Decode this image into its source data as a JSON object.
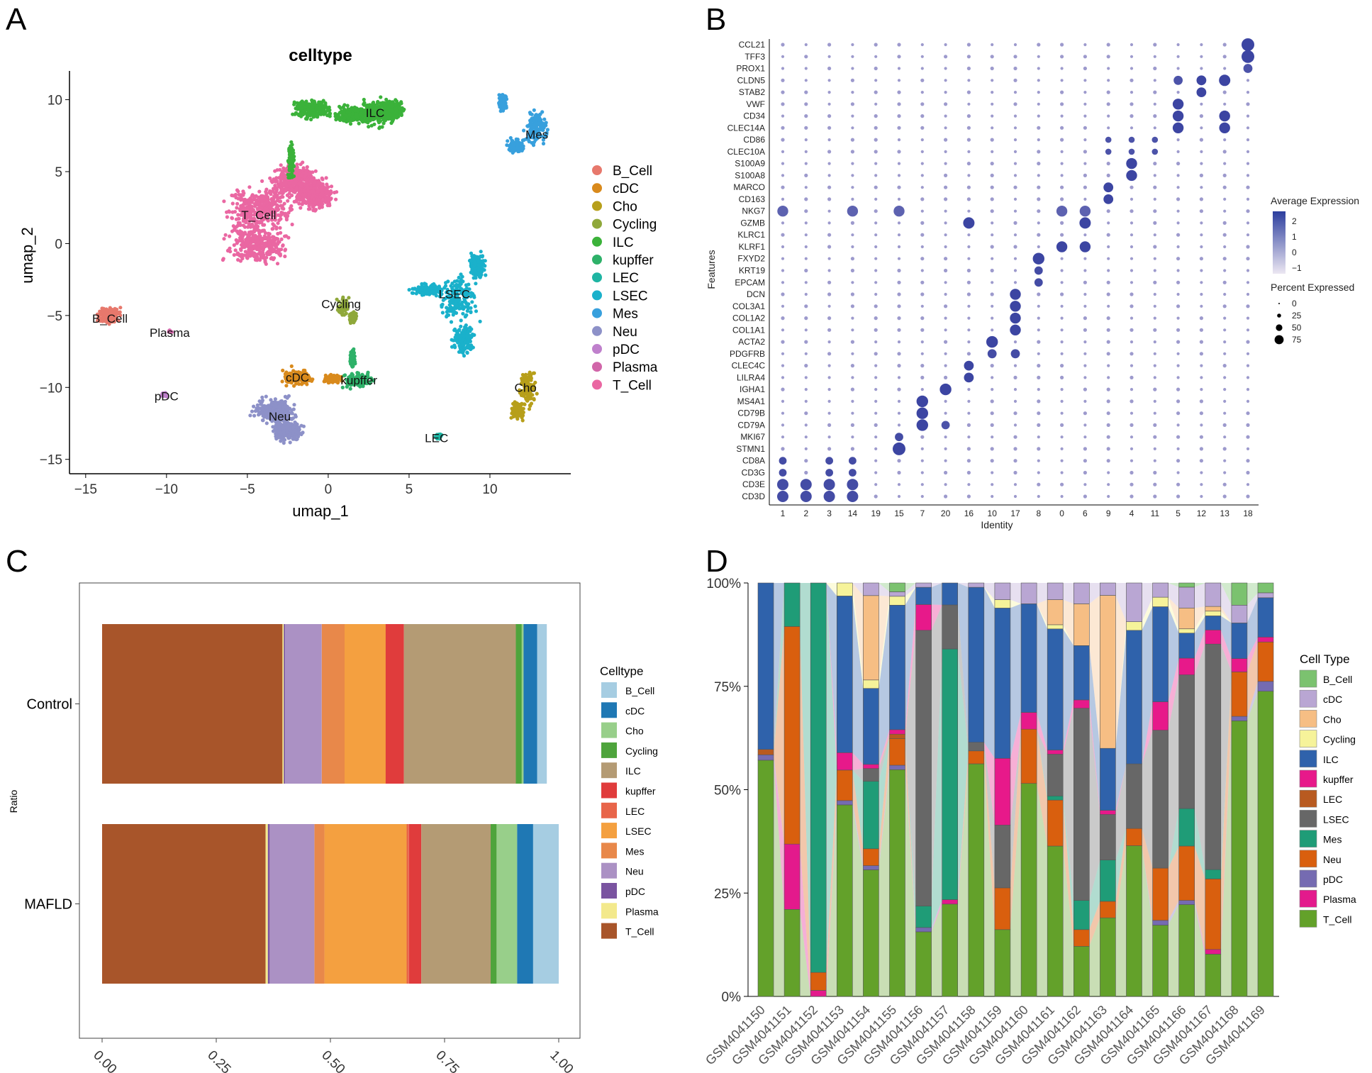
{
  "panels": {
    "a": "A",
    "b": "B",
    "c": "C",
    "d": "D"
  },
  "colors": {
    "B_Cell": "#e7786c",
    "cDC": "#d98a1c",
    "Cho": "#b79f1a",
    "Cycling": "#8fa83a",
    "ILC": "#3bb23a",
    "kupffer": "#2eb169",
    "LEC": "#1fb5a3",
    "LSEC": "#1ab1cb",
    "Mes": "#38a0dd",
    "Neu": "#8d91c8",
    "pDC": "#bf80cc",
    "Plasma": "#d166a9",
    "T_Cell": "#ea67a2"
  },
  "chart_data": [
    {
      "type": "scatter",
      "panel": "A",
      "title": "celltype",
      "xlabel": "umap_1",
      "ylabel": "umap_2",
      "xlim": [
        -16,
        15
      ],
      "ylim": [
        -16,
        12
      ],
      "xticks": [
        -15,
        -10,
        -5,
        0,
        5,
        10
      ],
      "yticks": [
        -15,
        -10,
        -5,
        0,
        5,
        10
      ],
      "legend": [
        "B_Cell",
        "cDC",
        "Cho",
        "Cycling",
        "ILC",
        "kupffer",
        "LEC",
        "LSEC",
        "Mes",
        "Neu",
        "pDC",
        "Plasma",
        "T_Cell"
      ],
      "cluster_labels": [
        {
          "name": "B_Cell",
          "x": -13.5,
          "y": -5.2
        },
        {
          "name": "Plasma",
          "x": -9.8,
          "y": -6.2
        },
        {
          "name": "pDC",
          "x": -10.0,
          "y": -10.6
        },
        {
          "name": "T_Cell",
          "x": -4.3,
          "y": 2.0
        },
        {
          "name": "ILC",
          "x": 2.9,
          "y": 9.1
        },
        {
          "name": "Mes",
          "x": 12.9,
          "y": 7.6
        },
        {
          "name": "Cycling",
          "x": 0.8,
          "y": -4.2
        },
        {
          "name": "LSEC",
          "x": 7.8,
          "y": -3.5
        },
        {
          "name": "cDC",
          "x": -1.9,
          "y": -9.3
        },
        {
          "name": "kupffer",
          "x": 1.9,
          "y": -9.5
        },
        {
          "name": "Neu",
          "x": -3.0,
          "y": -12.0
        },
        {
          "name": "Cho",
          "x": 12.2,
          "y": -10.0
        },
        {
          "name": "LEC",
          "x": 6.7,
          "y": -13.5
        }
      ]
    },
    {
      "type": "dot",
      "panel": "B",
      "xlabel": "Identity",
      "ylabel": "Features",
      "identities": [
        "1",
        "2",
        "3",
        "14",
        "19",
        "15",
        "7",
        "20",
        "16",
        "10",
        "17",
        "8",
        "0",
        "6",
        "9",
        "4",
        "11",
        "5",
        "12",
        "13",
        "18"
      ],
      "features": [
        "CCL21",
        "TFF3",
        "PROX1",
        "CLDN5",
        "STAB2",
        "VWF",
        "CD34",
        "CLEC14A",
        "CD86",
        "CLEC10A",
        "S100A9",
        "S100A8",
        "MARCO",
        "CD163",
        "NKG7",
        "GZMB",
        "KLRC1",
        "KLRF1",
        "FXYD2",
        "KRT19",
        "EPCAM",
        "DCN",
        "COL3A1",
        "COL1A2",
        "COL1A1",
        "ACTA2",
        "PDGFRB",
        "CLEC4C",
        "LILRA4",
        "IGHA1",
        "MS4A1",
        "CD79B",
        "CD79A",
        "MKI67",
        "STMN1",
        "CD8A",
        "CD3G",
        "CD3E",
        "CD3D"
      ],
      "avg_legend_title": "Average Expression",
      "avg_legend_ticks": [
        "2",
        "1",
        "0",
        "−1"
      ],
      "pct_legend_title": "Percent Expressed",
      "pct_legend_ticks": [
        "0",
        "25",
        "50",
        "75"
      ]
    },
    {
      "type": "bar",
      "panel": "C",
      "orientation": "horizontal-stacked",
      "ylabel": "Ratio",
      "categories": [
        "Control",
        "MAFLD"
      ],
      "xticks": [
        "0.00",
        "0.25",
        "0.50",
        "0.75",
        "1.00"
      ],
      "legend_title": "Celltype",
      "legend": [
        "B_Cell",
        "cDC",
        "Cho",
        "Cycling",
        "ILC",
        "kupffer",
        "LEC",
        "LSEC",
        "Mes",
        "Neu",
        "pDC",
        "Plasma",
        "T_Cell"
      ],
      "series_order": [
        "T_Cell",
        "Plasma",
        "pDC",
        "Neu",
        "Mes",
        "LSEC",
        "LEC",
        "kupffer",
        "ILC",
        "Cycling",
        "Cho",
        "cDC",
        "B_Cell"
      ],
      "series_colors": {
        "B_Cell": "#a6cde2",
        "cDC": "#1f78b4",
        "Cho": "#98cf8a",
        "Cycling": "#4ea43c",
        "ILC": "#b49b74",
        "kupffer": "#e03c3c",
        "LEC": "#e8654a",
        "LSEC": "#f4a040",
        "Mes": "#e8884a",
        "Neu": "#ab91c4",
        "pDC": "#7a54a0",
        "Plasma": "#f3e98c",
        "T_Cell": "#a8552a"
      },
      "values": {
        "Control": {
          "T_Cell": 0.395,
          "Plasma": 0.003,
          "pDC": 0.003,
          "Neu": 0.08,
          "Mes": 0.05,
          "LSEC": 0.09,
          "LEC": 0.0,
          "kupffer": 0.04,
          "ILC": 0.245,
          "Cycling": 0.013,
          "Cho": 0.004,
          "cDC": 0.03,
          "B_Cell": 0.021
        },
        "MAFLD": {
          "T_Cell": 0.358,
          "Plasma": 0.005,
          "pDC": 0.004,
          "Neu": 0.098,
          "Mes": 0.022,
          "LSEC": 0.18,
          "LEC": 0.005,
          "kupffer": 0.027,
          "ILC": 0.152,
          "Cycling": 0.013,
          "Cho": 0.045,
          "cDC": 0.035,
          "B_Cell": 0.056
        }
      }
    },
    {
      "type": "bar",
      "panel": "D",
      "orientation": "vertical-stacked-percent",
      "categories": [
        "GSM4041150",
        "GSM4041151",
        "GSM4041152",
        "GSM4041153",
        "GSM4041154",
        "GSM4041155",
        "GSM4041156",
        "GSM4041157",
        "GSM4041158",
        "GSM4041159",
        "GSM4041160",
        "GSM4041161",
        "GSM4041162",
        "GSM4041163",
        "GSM4041164",
        "GSM4041165",
        "GSM4041166",
        "GSM4041167",
        "GSM4041168",
        "GSM4041169"
      ],
      "yticks": [
        "0%",
        "25%",
        "50%",
        "75%",
        "100%"
      ],
      "legend_title": "Cell Type",
      "legend": [
        "B_Cell",
        "cDC",
        "Cho",
        "Cycling",
        "ILC",
        "kupffer",
        "LEC",
        "LSEC",
        "Mes",
        "Neu",
        "pDC",
        "Plasma",
        "T_Cell"
      ],
      "series_order": [
        "T_Cell",
        "Plasma",
        "pDC",
        "Neu",
        "Mes",
        "LSEC",
        "LEC",
        "kupffer",
        "ILC",
        "Cycling",
        "Cho",
        "cDC",
        "B_Cell"
      ],
      "series_colors": {
        "B_Cell": "#7bc26f",
        "cDC": "#b9a6d3",
        "Cho": "#f6be84",
        "Cycling": "#f6f39a",
        "ILC": "#2f62ab",
        "kupffer": "#e7198a",
        "LEC": "#b85a20",
        "LSEC": "#676767",
        "Mes": "#1f9c77",
        "Neu": "#d95f0e",
        "pDC": "#756bb1",
        "Plasma": "#e31a8c",
        "T_Cell": "#63a12a"
      },
      "values": [
        [
          44,
          0,
          1,
          0,
          0,
          0,
          1,
          0,
          31,
          0,
          0,
          0,
          0
        ],
        [
          4,
          3,
          0,
          10,
          2,
          0,
          0,
          0,
          0,
          0,
          0,
          0,
          0
        ],
        [
          0,
          1,
          0,
          3,
          65,
          0,
          0,
          0,
          0,
          0,
          0,
          0,
          0
        ],
        [
          44,
          0,
          1,
          7,
          0,
          0,
          0,
          4,
          36,
          3,
          0,
          0,
          0
        ],
        [
          30,
          0,
          1,
          4,
          16,
          3,
          0,
          1,
          18,
          2,
          20,
          3,
          0
        ],
        [
          51,
          0,
          1,
          6,
          0,
          0,
          1,
          1,
          28,
          2,
          0,
          1,
          2
        ],
        [
          15,
          0,
          1,
          0,
          5,
          64,
          0,
          6,
          4,
          0,
          0,
          1,
          0
        ],
        [
          21,
          1,
          0,
          0,
          57,
          10,
          0,
          0,
          5,
          0,
          0,
          0,
          0
        ],
        [
          54,
          0,
          0,
          3,
          0,
          2,
          0,
          0,
          36,
          0,
          0,
          1,
          0
        ],
        [
          16,
          0,
          0,
          10,
          0,
          15,
          0,
          16,
          36,
          2,
          0,
          4,
          0
        ],
        [
          51,
          0,
          0,
          13,
          0,
          0,
          0,
          4,
          26,
          0,
          0,
          5,
          0
        ],
        [
          36,
          0,
          0,
          11,
          1,
          10,
          0,
          1,
          29,
          1,
          6,
          4,
          0
        ],
        [
          12,
          0,
          0,
          4,
          7,
          46,
          0,
          2,
          13,
          0,
          10,
          5,
          0
        ],
        [
          19,
          0,
          0,
          4,
          10,
          11,
          0,
          1,
          15,
          0,
          37,
          3,
          0
        ],
        [
          35,
          0,
          0,
          4,
          0,
          15,
          0,
          0,
          31,
          2,
          0,
          9,
          0
        ],
        [
          15,
          0,
          1,
          11,
          0,
          29,
          0,
          6,
          20,
          2,
          0,
          3,
          0
        ],
        [
          22,
          0,
          1,
          13,
          9,
          32,
          0,
          4,
          6,
          1,
          5,
          5,
          1
        ],
        [
          9,
          1,
          0,
          15,
          2,
          48,
          0,
          3,
          3,
          1,
          1,
          5,
          0
        ],
        [
          62,
          0,
          1,
          10,
          0,
          0,
          0,
          3,
          8,
          0,
          0,
          4,
          5
        ],
        [
          62,
          0,
          2,
          8,
          0,
          0,
          0,
          1,
          8,
          0,
          0,
          1,
          2
        ]
      ]
    }
  ]
}
